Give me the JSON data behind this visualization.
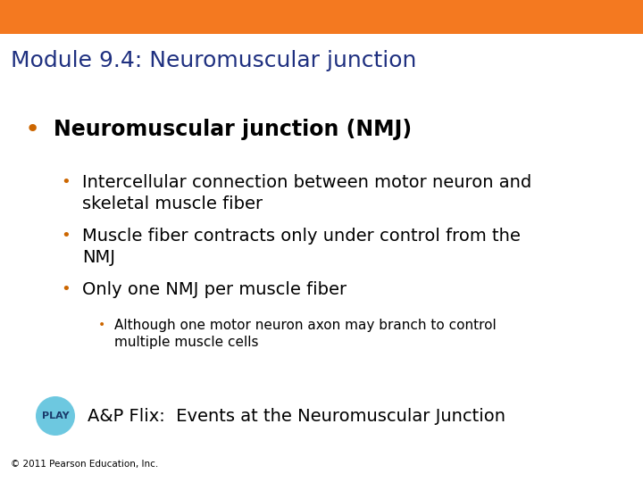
{
  "title_bar_color": "#F47920",
  "title_text": "Module 9.4: Neuromuscular junction",
  "title_text_color": "#1F3080",
  "title_fontsize": 18,
  "background_color": "#FFFFFF",
  "bullet_color": "#CC6600",
  "bullet1_text": "Neuromuscular junction (NMJ)",
  "bullet1_fontsize": 17,
  "sub_bullets": [
    {
      "text": "Intercellular connection between motor neuron and\nskeletal muscle fiber",
      "fontsize": 14
    },
    {
      "text": "Muscle fiber contracts only under control from the\nNMJ",
      "fontsize": 14
    },
    {
      "text": "Only one NMJ per muscle fiber",
      "fontsize": 14
    }
  ],
  "sub_sub_bullet": {
    "text": "Although one motor neuron axon may branch to control\nmultiple muscle cells",
    "fontsize": 11
  },
  "play_circle_color": "#6DC8E0",
  "play_text": "PLAY",
  "play_text_color": "#1A3A6B",
  "flix_text": "A&P Flix:  Events at the Neuromuscular Junction",
  "flix_fontsize": 14,
  "copyright_text": "© 2011 Pearson Education, Inc.",
  "copyright_fontsize": 7.5
}
